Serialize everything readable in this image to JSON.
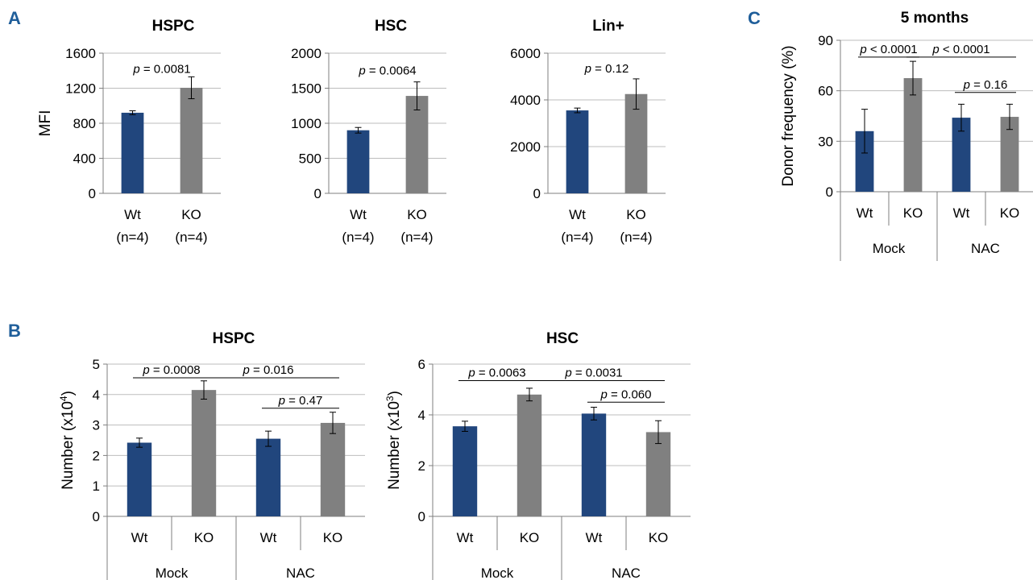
{
  "panel_labels": [
    "A",
    "B",
    "C"
  ],
  "colors": {
    "wt": "#21467d",
    "ko": "#808080"
  },
  "chart_data": [
    {
      "id": "A1",
      "panel": "A",
      "type": "bar",
      "title": "HSPC",
      "ylabel": "MFI",
      "ylim": [
        0,
        1600
      ],
      "yticks": [
        0,
        400,
        800,
        1200,
        1600
      ],
      "categories": [
        "Wt",
        "KO"
      ],
      "category_sublabels": [
        "(n=4)",
        "(n=4)"
      ],
      "values": [
        920,
        1205
      ],
      "errors": [
        22,
        125
      ],
      "colors": [
        "wt",
        "ko"
      ],
      "grid": true,
      "annotations": [
        {
          "prefix": "p",
          "text": " = 0.0081",
          "from": 0,
          "to": 1,
          "y": 1330,
          "line": false
        }
      ]
    },
    {
      "id": "A2",
      "panel": "A",
      "type": "bar",
      "title": "HSC",
      "ylabel": "",
      "ylim": [
        0,
        2000
      ],
      "yticks": [
        0,
        500,
        1000,
        1500,
        2000
      ],
      "categories": [
        "Wt",
        "KO"
      ],
      "category_sublabels": [
        "(n=4)",
        "(n=4)"
      ],
      "values": [
        900,
        1390
      ],
      "errors": [
        40,
        200
      ],
      "colors": [
        "wt",
        "ko"
      ],
      "grid": true,
      "annotations": [
        {
          "prefix": "p",
          "text": " = 0.0064",
          "from": 0,
          "to": 1,
          "y": 1640,
          "line": false
        }
      ]
    },
    {
      "id": "A3",
      "panel": "A",
      "type": "bar",
      "title": "Lin+",
      "ylabel": "",
      "ylim": [
        0,
        6000
      ],
      "yticks": [
        0,
        2000,
        4000,
        6000
      ],
      "categories": [
        "Wt",
        "KO"
      ],
      "category_sublabels": [
        "(n=4)",
        "(n=4)"
      ],
      "values": [
        3550,
        4250
      ],
      "errors": [
        100,
        650
      ],
      "colors": [
        "wt",
        "ko"
      ],
      "grid": true,
      "annotations": [
        {
          "prefix": "p",
          "text": " = 0.12",
          "from": 0,
          "to": 1,
          "y": 5000,
          "line": false
        }
      ]
    },
    {
      "id": "B1",
      "panel": "B",
      "type": "bar",
      "title": "HSPC",
      "ylabel": "Number (x10",
      "ylabel_sup": "4",
      "ylabel_suffix": ")",
      "ylim": [
        0,
        5
      ],
      "yticks": [
        0,
        1,
        2,
        3,
        4,
        5
      ],
      "categories": [
        "Wt",
        "KO",
        "Wt",
        "KO"
      ],
      "groups": [
        {
          "label": "Mock",
          "span": [
            0,
            1
          ]
        },
        {
          "label": "NAC",
          "span": [
            2,
            3
          ]
        }
      ],
      "values": [
        2.42,
        4.15,
        2.55,
        3.07
      ],
      "errors": [
        0.15,
        0.3,
        0.25,
        0.35
      ],
      "colors": [
        "wt",
        "ko",
        "wt",
        "ko"
      ],
      "grid": true,
      "annotations": [
        {
          "prefix": "p",
          "text": " = 0.0008",
          "from": 0,
          "to": 1,
          "y": 4.55,
          "line": true
        },
        {
          "prefix": "p",
          "text": " = 0.016",
          "from": 1,
          "to": 3,
          "y": 4.55,
          "line": true
        },
        {
          "prefix": "p",
          "text": " = 0.47",
          "from": 2,
          "to": 3,
          "y": 3.55,
          "line": true
        }
      ]
    },
    {
      "id": "B2",
      "panel": "B",
      "type": "bar",
      "title": "HSC",
      "ylabel": "Number (x10",
      "ylabel_sup": "3",
      "ylabel_suffix": ")",
      "ylim": [
        0,
        6
      ],
      "yticks": [
        0,
        2,
        4,
        6
      ],
      "categories": [
        "Wt",
        "KO",
        "Wt",
        "KO"
      ],
      "groups": [
        {
          "label": "Mock",
          "span": [
            0,
            1
          ]
        },
        {
          "label": "NAC",
          "span": [
            2,
            3
          ]
        }
      ],
      "values": [
        3.55,
        4.8,
        4.05,
        3.32
      ],
      "errors": [
        0.2,
        0.25,
        0.25,
        0.45
      ],
      "colors": [
        "wt",
        "ko",
        "wt",
        "ko"
      ],
      "grid": true,
      "annotations": [
        {
          "prefix": "p",
          "text": " = 0.0063",
          "from": 0,
          "to": 1,
          "y": 5.35,
          "line": true
        },
        {
          "prefix": "p",
          "text": " = 0.0031",
          "from": 1,
          "to": 3,
          "y": 5.35,
          "line": true
        },
        {
          "prefix": "p",
          "text": " = 0.060",
          "from": 2,
          "to": 3,
          "y": 4.5,
          "line": true
        }
      ]
    },
    {
      "id": "C1",
      "panel": "C",
      "type": "bar",
      "title": "5 months",
      "ylabel": "Donor frequency (%)",
      "ylim": [
        0,
        90
      ],
      "yticks": [
        0,
        30,
        60,
        90
      ],
      "categories": [
        "Wt",
        "KO",
        "Wt",
        "KO"
      ],
      "groups": [
        {
          "label": "Mock",
          "span": [
            0,
            1
          ]
        },
        {
          "label": "NAC",
          "span": [
            2,
            3
          ]
        }
      ],
      "values": [
        36,
        67.5,
        44,
        44.5
      ],
      "errors": [
        13,
        10,
        8,
        7.5
      ],
      "colors": [
        "wt",
        "ko",
        "wt",
        "ko"
      ],
      "grid": true,
      "annotations": [
        {
          "prefix": "p",
          "text": " < 0.0001",
          "from": 0,
          "to": 1,
          "y": 80,
          "line": true
        },
        {
          "prefix": "p",
          "text": " < 0.0001",
          "from": 1,
          "to": 3,
          "y": 80,
          "line": true
        },
        {
          "prefix": "p",
          "text": " = 0.16",
          "from": 2,
          "to": 3,
          "y": 59,
          "line": true
        }
      ]
    }
  ]
}
